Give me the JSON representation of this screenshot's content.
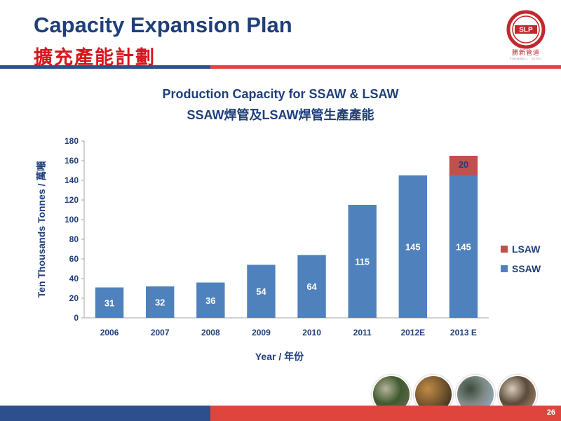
{
  "slide": {
    "title_en": "Capacity Expansion Plan",
    "title_zh": "擴充產能計劃",
    "logo_text": "勝新管道",
    "logo_badge": "SLP",
    "logo_sub": "FORMWELL · STEEL",
    "page_number": "26"
  },
  "photos": [
    {
      "name": "pipe-yard-photo",
      "colors": [
        "#6b6e5a",
        "#3e5a2f",
        "#b8b39c"
      ]
    },
    {
      "name": "pipe-ends-photo",
      "colors": [
        "#1c1c1c",
        "#7a5a30",
        "#c38a45"
      ]
    },
    {
      "name": "pipeline-field-photo",
      "colors": [
        "#9bb7d9",
        "#7f8a86",
        "#3a4a3a"
      ]
    },
    {
      "name": "mountain-pipeline-photo",
      "colors": [
        "#b59a7a",
        "#5a4a3a",
        "#d8cbb8"
      ]
    }
  ],
  "colors": {
    "ssaw": "#4f81bd",
    "lsaw": "#c0504d",
    "axis_text": "#1f3f7a"
  },
  "chart_data": {
    "type": "bar",
    "stacked": true,
    "title": "Production Capacity for SSAW & LSAW",
    "subtitle": "SSAW焊管及LSAW焊管生產產能",
    "xlabel": "Year / 年份",
    "ylabel": "Ten Thousands Tonnes / 萬噸",
    "categories": [
      "2006",
      "2007",
      "2008",
      "2009",
      "2010",
      "2011",
      "2012E",
      "2013 E"
    ],
    "series": [
      {
        "name": "SSAW",
        "color": "#4f81bd",
        "values": [
          31,
          32,
          36,
          54,
          64,
          115,
          145,
          145
        ],
        "labels": [
          "31",
          "32",
          "36",
          "54",
          "64",
          "115",
          "145",
          "145"
        ]
      },
      {
        "name": "LSAW",
        "color": "#c0504d",
        "values": [
          0,
          0,
          0,
          0,
          0,
          0,
          0,
          20
        ],
        "labels": [
          "",
          "",
          "",
          "",
          "",
          "",
          "",
          "20"
        ]
      }
    ],
    "ylim": [
      0,
      180
    ],
    "yticks": [
      "0",
      "20",
      "40",
      "60",
      "80",
      "100",
      "120",
      "140",
      "160",
      "180"
    ],
    "grid": false,
    "legend_position": "right"
  }
}
